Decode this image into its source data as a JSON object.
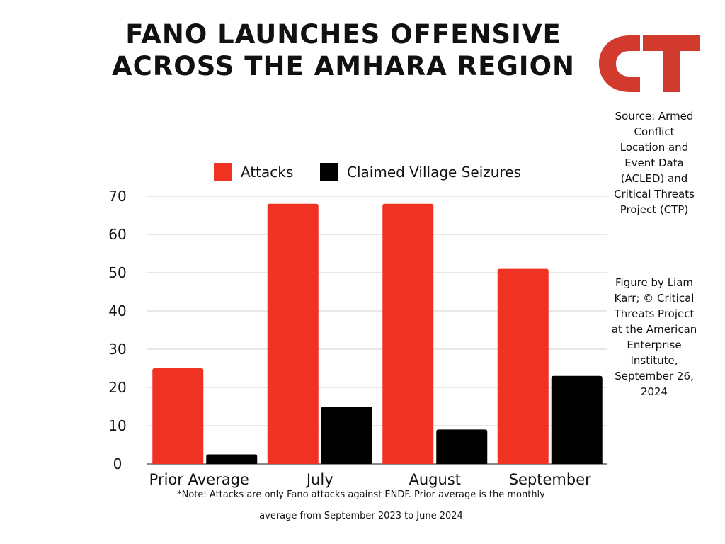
{
  "title_lines": [
    "FANO LAUNCHES OFFENSIVE",
    "ACROSS THE AMHARA REGION"
  ],
  "logo": {
    "text": "CT",
    "color": "#d13a2c"
  },
  "source_note": "Source: Armed Conflict Location and Event Data (ACLED) and Critical Threats Project (CTP)",
  "credit_note": "Figure by Liam Karr; © Critical Threats Project at the American Enterprise Institute, September 26, 2024",
  "footnote_line1": "*Note: Attacks are only Fano attacks against ENDF. Prior average is the monthly",
  "footnote_line2": "average from September 2023 to June 2024",
  "chart_data": {
    "type": "bar",
    "categories": [
      "Prior Average",
      "July",
      "August",
      "September"
    ],
    "series": [
      {
        "name": "Attacks",
        "color": "#f03222",
        "values": [
          25,
          68,
          68,
          51
        ]
      },
      {
        "name": "Claimed Village Seizures",
        "color": "#000000",
        "values": [
          2.5,
          15,
          9,
          23
        ]
      }
    ],
    "ylim": [
      0,
      70
    ],
    "yticks": [
      0,
      10,
      20,
      30,
      40,
      50,
      60,
      70
    ],
    "grid": true,
    "legend_position": "top"
  }
}
